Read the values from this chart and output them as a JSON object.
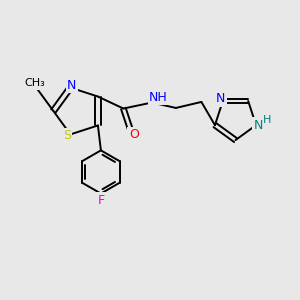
{
  "background_color": "#e8e8e8",
  "atom_colors": {
    "S": "#c8c800",
    "N": "#0000ff",
    "O": "#ff0000",
    "F": "#ff00bb",
    "C": "#000000",
    "H": "#008080"
  },
  "figsize": [
    3.0,
    3.0
  ],
  "dpi": 100,
  "xlim": [
    0,
    10
  ],
  "ylim": [
    0,
    10
  ],
  "lw": 1.4,
  "fontsize": 9
}
